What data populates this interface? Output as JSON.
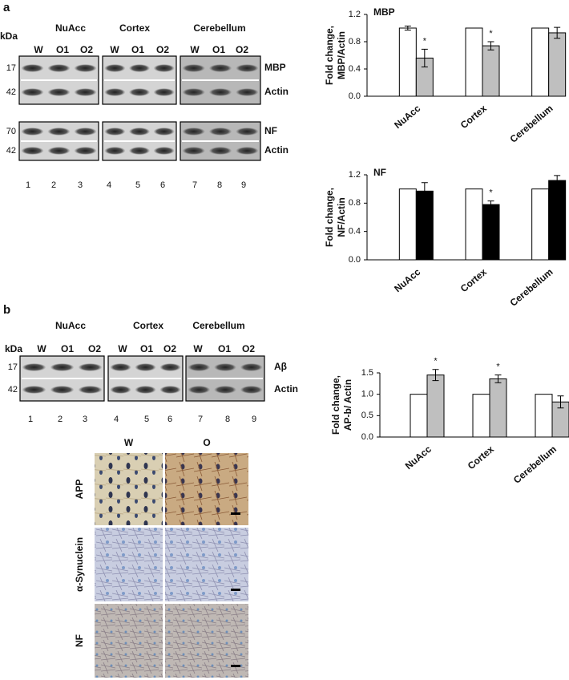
{
  "panel_a": {
    "label": "a",
    "kda": "kDa",
    "regions": [
      "NuAcc",
      "Cortex",
      "Cerebellum"
    ],
    "lanes": [
      "W",
      "O1",
      "O2",
      "W",
      "O1",
      "O2",
      "W",
      "O1",
      "O2"
    ],
    "lane_numbers": [
      "1",
      "2",
      "3",
      "4",
      "5",
      "6",
      "7",
      "8",
      "9"
    ],
    "blots": [
      {
        "markers": [
          "17",
          "42"
        ],
        "bands": [
          "MBP",
          "Actin"
        ]
      },
      {
        "markers": [
          "70",
          "42"
        ],
        "bands": [
          "NF",
          "Actin"
        ]
      }
    ]
  },
  "panel_b": {
    "label": "b",
    "kda": "kDa",
    "regions": [
      "NuAcc",
      "Cortex",
      "Cerebellum"
    ],
    "lanes": [
      "W",
      "O1",
      "O2",
      "W",
      "O1",
      "O2",
      "W",
      "O1",
      "O2"
    ],
    "lane_numbers": [
      "1",
      "2",
      "3",
      "4",
      "5",
      "6",
      "7",
      "8",
      "9"
    ],
    "blots": [
      {
        "markers": [
          "17",
          "42"
        ],
        "bands": [
          "Aβ",
          "Actin"
        ]
      }
    ]
  },
  "histology": {
    "columns": [
      "W",
      "O"
    ],
    "rows": [
      "APP",
      "α-Synuclein",
      "NF"
    ]
  },
  "chart_data": [
    {
      "type": "bar",
      "title": "MBP",
      "ylabel": [
        "Fold change,",
        "MBP/Actin"
      ],
      "categories": [
        "NuAcc",
        "Cortex",
        "Cerebellum"
      ],
      "series": [
        {
          "color": "#ffffff",
          "values": [
            1,
            1,
            1
          ],
          "errors": [
            0.03,
            0,
            0
          ],
          "annotations": [
            null,
            null,
            null
          ]
        },
        {
          "color": "#bfbfbf",
          "values": [
            0.56,
            0.74,
            0.93
          ],
          "errors": [
            0.13,
            0.06,
            0.08
          ],
          "annotations": [
            "*",
            "*",
            null
          ]
        }
      ],
      "ylim": [
        0,
        1.2
      ],
      "yticks": [
        {
          "value": 0,
          "label": "0.0"
        },
        0.4,
        0.8,
        1.2
      ]
    },
    {
      "type": "bar",
      "title": "NF",
      "ylabel": [
        "Fold change,",
        "NF/Actin"
      ],
      "categories": [
        "NuAcc",
        "Cortex",
        "Cerebellum"
      ],
      "series": [
        {
          "color": "#ffffff",
          "values": [
            1,
            1,
            1
          ],
          "errors": [
            0,
            0,
            0
          ],
          "annotations": [
            null,
            null,
            null
          ]
        },
        {
          "color": "#000000",
          "values": [
            0.97,
            0.78,
            1.12
          ],
          "errors": [
            0.12,
            0.05,
            0.07
          ],
          "annotations": [
            null,
            "*",
            null
          ]
        }
      ],
      "ylim": [
        0,
        1.2
      ],
      "yticks": [
        {
          "value": 0,
          "label": "0.0"
        },
        0.4,
        0.8,
        1.2
      ]
    },
    {
      "type": "bar",
      "ylabel": [
        "Fold change,",
        "AP-b/ Actin"
      ],
      "categories": [
        "NuAcc",
        "Cortex",
        "Cerebellum"
      ],
      "series": [
        {
          "color": "#ffffff",
          "values": [
            1,
            1,
            1
          ],
          "errors": [
            0,
            0,
            0
          ],
          "annotations": [
            null,
            null,
            null
          ]
        },
        {
          "color": "#bfbfbf",
          "values": [
            1.45,
            1.36,
            0.82
          ],
          "errors": [
            0.13,
            0.09,
            0.14
          ],
          "annotations": [
            "*",
            "*",
            null
          ]
        }
      ],
      "ylim": [
        0,
        1.5
      ],
      "yticks": [
        {
          "value": 0,
          "label": "0.0"
        },
        {
          "value": 0.5,
          "label": "0.5"
        },
        {
          "value": 1,
          "label": "1.0"
        },
        1.5
      ]
    }
  ]
}
